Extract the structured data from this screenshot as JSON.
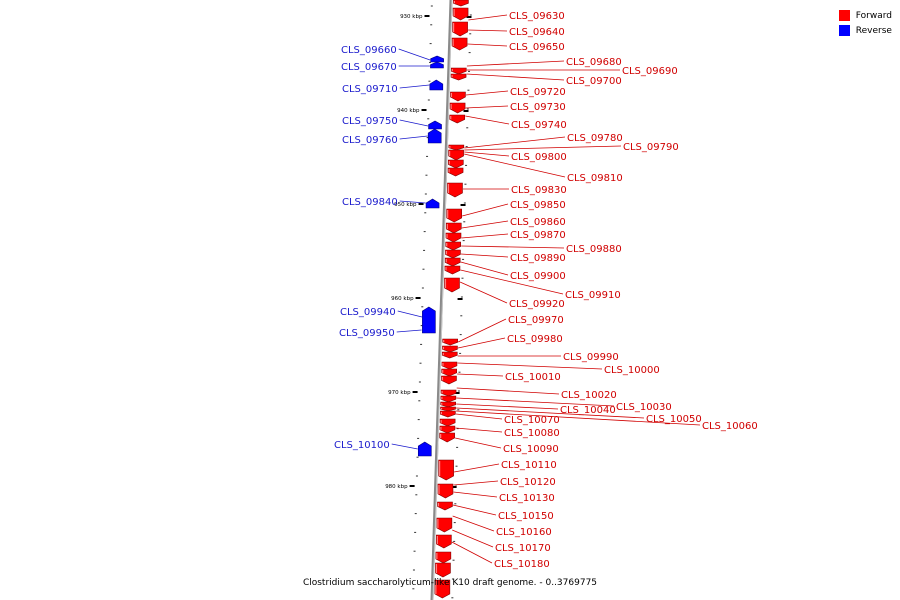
{
  "caption": "Clostridium saccharolyticum-like K10 draft genome. - 0..3769775",
  "legend": {
    "forward": {
      "label": "Forward",
      "color": "#ff0000"
    },
    "reverse": {
      "label": "Reverse",
      "color": "#0000ff"
    }
  },
  "label_colors": {
    "forward": "#d00000",
    "reverse": "#1a1acc"
  },
  "ruler": [
    {
      "label": "930 kbp"
    },
    {
      "label": "940 kbp"
    },
    {
      "label": "950 kbp"
    },
    {
      "label": "960 kbp"
    },
    {
      "label": "970 kbp"
    },
    {
      "label": "980 kbp"
    }
  ],
  "forward_genes": [
    "CLS_09630",
    "CLS_09640",
    "CLS_09650",
    "CLS_09680",
    "CLS_09690",
    "CLS_09700",
    "CLS_09720",
    "CLS_09730",
    "CLS_09740",
    "CLS_09780",
    "CLS_09790",
    "CLS_09800",
    "CLS_09810",
    "CLS_09830",
    "CLS_09850",
    "CLS_09860",
    "CLS_09870",
    "CLS_09880",
    "CLS_09890",
    "CLS_09900",
    "CLS_09910",
    "CLS_09920",
    "CLS_09970",
    "CLS_09980",
    "CLS_09990",
    "CLS_10000",
    "CLS_10010",
    "CLS_10020",
    "CLS_10030",
    "CLS_10040",
    "CLS_10050",
    "CLS_10060",
    "CLS_10070",
    "CLS_10080",
    "CLS_10090",
    "CLS_10110",
    "CLS_10120",
    "CLS_10130",
    "CLS_10150",
    "CLS_10160",
    "CLS_10170",
    "CLS_10180"
  ],
  "reverse_genes": [
    "CLS_09660",
    "CLS_09670",
    "CLS_09710",
    "CLS_09750",
    "CLS_09760",
    "CLS_09840",
    "CLS_09940",
    "CLS_09950",
    "CLS_10100"
  ]
}
